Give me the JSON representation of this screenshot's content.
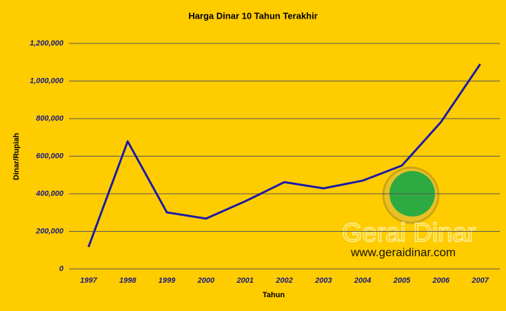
{
  "chart_data": {
    "type": "line",
    "title": "Harga Dinar 10 Tahun Terakhir",
    "x_label": "Tahun",
    "y_label": "Dinar/Rupiah",
    "categories": [
      "1997",
      "1998",
      "1999",
      "2000",
      "2001",
      "2002",
      "2003",
      "2004",
      "2005",
      "2006",
      "2007"
    ],
    "values": [
      117000,
      679000,
      301000,
      268000,
      360000,
      462000,
      429000,
      470000,
      550000,
      782000,
      1090000
    ],
    "color": "#1a1aa6",
    "ylim": [
      0,
      1200000
    ],
    "yticks": [
      0,
      {
        "value": 200000,
        "label": "200,000"
      },
      {
        "value": 400000,
        "label": "400,000"
      },
      {
        "value": 600000,
        "label": "600,000"
      },
      {
        "value": 800000,
        "label": "800,000"
      },
      {
        "value": 1000000,
        "label": "1,000,000"
      },
      {
        "value": 1200000,
        "label": "1,200,000"
      }
    ],
    "grid": true,
    "watermark": {
      "name": "Gerai Dinar",
      "url": "www.geraidinar.com"
    }
  }
}
